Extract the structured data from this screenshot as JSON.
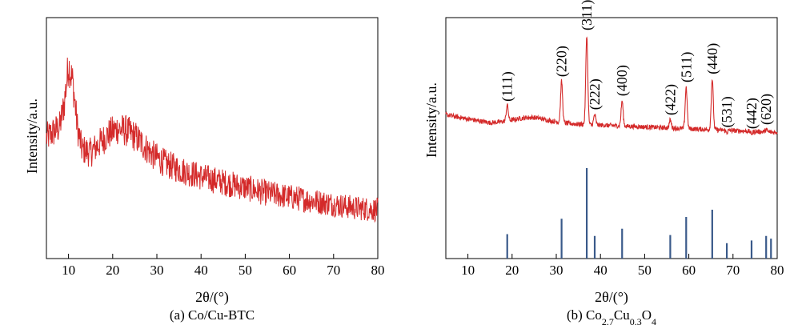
{
  "panel_captions": [
    {
      "prefix": "(a) ",
      "text": "Co/Cu-BTC"
    },
    {
      "prefix": "(b) ",
      "parts": [
        {
          "t": "Co",
          "s": false
        },
        {
          "t": "2.7",
          "s": true
        },
        {
          "t": "Cu",
          "s": false
        },
        {
          "t": "0.3",
          "s": true
        },
        {
          "t": "O",
          "s": false
        },
        {
          "t": "4",
          "s": true
        }
      ]
    }
  ],
  "chart_data": [
    {
      "type": "line",
      "title": "",
      "xlabel": "2θ/(°)",
      "ylabel": "Intensity/a.u.",
      "xlim": [
        5,
        80
      ],
      "xticks": [
        10,
        20,
        30,
        40,
        50,
        60,
        70,
        80
      ],
      "yticks": [],
      "grid": false,
      "color": "#d42a2a",
      "series": [
        {
          "values_note": "noisy XRD profile, relative intensity 0-1",
          "x": [
            5,
            8,
            9,
            10,
            11,
            12,
            13,
            15,
            17,
            19,
            21,
            23,
            25,
            27,
            29,
            32,
            35,
            40,
            45,
            50,
            55,
            60,
            65,
            70,
            75,
            80
          ],
          "y": [
            0.52,
            0.58,
            0.7,
            0.92,
            0.82,
            0.58,
            0.46,
            0.44,
            0.49,
            0.54,
            0.57,
            0.56,
            0.53,
            0.48,
            0.43,
            0.38,
            0.35,
            0.31,
            0.28,
            0.25,
            0.22,
            0.2,
            0.18,
            0.16,
            0.14,
            0.13
          ]
        }
      ]
    },
    {
      "type": "line",
      "title": "",
      "xlabel": "2θ/(°)",
      "ylabel": "Intensity/a.u.",
      "xlim": [
        5,
        80
      ],
      "xticks": [
        10,
        20,
        30,
        40,
        50,
        60,
        70,
        80
      ],
      "yticks": [],
      "grid": false,
      "color": "#d42a2a",
      "reference_color": "#3a5a8a",
      "series": [
        {
          "name": "",
          "baseline": [
            [
              5,
              0.42
            ],
            [
              8,
              0.4
            ],
            [
              15,
              0.36
            ],
            [
              25,
              0.37
            ],
            [
              35,
              0.35
            ],
            [
              50,
              0.33
            ],
            [
              65,
              0.31
            ],
            [
              80,
              0.29
            ]
          ],
          "peaks": [
            {
              "hkl": "(111)",
              "x": 18.9,
              "y": 0.48
            },
            {
              "hkl": "(220)",
              "x": 31.2,
              "y": 0.66
            },
            {
              "hkl": "(311)",
              "x": 36.9,
              "y": 1.0
            },
            {
              "hkl": "(222)",
              "x": 38.7,
              "y": 0.42
            },
            {
              "hkl": "(400)",
              "x": 44.9,
              "y": 0.52
            },
            {
              "hkl": "(422)",
              "x": 55.8,
              "y": 0.38
            },
            {
              "hkl": "(511)",
              "x": 59.4,
              "y": 0.62
            },
            {
              "hkl": "(440)",
              "x": 65.3,
              "y": 0.68
            },
            {
              "hkl": "(531)",
              "x": 68.6,
              "y": 0.29
            },
            {
              "hkl": "(442)",
              "x": 74.2,
              "y": 0.28
            },
            {
              "hkl": "(620)",
              "x": 77.5,
              "y": 0.31
            }
          ]
        },
        {
          "name": "",
          "reference_sticks": [
            {
              "x": 18.9,
              "h": 0.27
            },
            {
              "x": 31.2,
              "h": 0.44
            },
            {
              "x": 36.9,
              "h": 1.0
            },
            {
              "x": 38.7,
              "h": 0.25
            },
            {
              "x": 44.9,
              "h": 0.33
            },
            {
              "x": 55.8,
              "h": 0.26
            },
            {
              "x": 59.4,
              "h": 0.46
            },
            {
              "x": 65.3,
              "h": 0.54
            },
            {
              "x": 68.6,
              "h": 0.17
            },
            {
              "x": 74.2,
              "h": 0.2
            },
            {
              "x": 77.5,
              "h": 0.25
            },
            {
              "x": 78.6,
              "h": 0.22
            }
          ]
        }
      ]
    }
  ]
}
